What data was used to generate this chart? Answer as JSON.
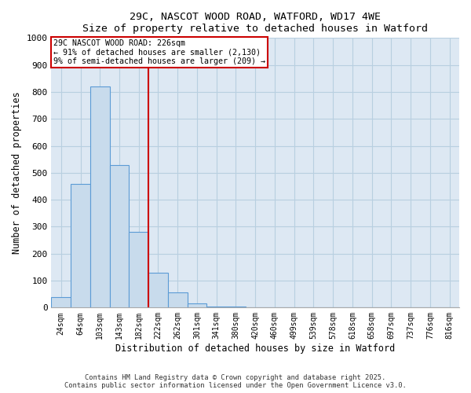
{
  "title_line1": "29C, NASCOT WOOD ROAD, WATFORD, WD17 4WE",
  "title_line2": "Size of property relative to detached houses in Watford",
  "xlabel": "Distribution of detached houses by size in Watford",
  "ylabel": "Number of detached properties",
  "background_color": "#dde8f3",
  "bar_color": "#c8dbec",
  "bar_edge_color": "#5b9bd5",
  "grid_color": "#b8cfe0",
  "categories": [
    "24sqm",
    "64sqm",
    "103sqm",
    "143sqm",
    "182sqm",
    "222sqm",
    "262sqm",
    "301sqm",
    "341sqm",
    "380sqm",
    "420sqm",
    "460sqm",
    "499sqm",
    "539sqm",
    "578sqm",
    "618sqm",
    "658sqm",
    "697sqm",
    "737sqm",
    "776sqm",
    "816sqm"
  ],
  "values": [
    40,
    460,
    820,
    530,
    280,
    130,
    55,
    15,
    5,
    5,
    0,
    0,
    0,
    0,
    0,
    0,
    0,
    0,
    0,
    0,
    0
  ],
  "vline_x": 4.5,
  "property_label": "29C NASCOT WOOD ROAD: 226sqm",
  "annotation_line1": "← 91% of detached houses are smaller (2,130)",
  "annotation_line2": "9% of semi-detached houses are larger (209) →",
  "vline_color": "#cc0000",
  "annotation_box_color": "#cc0000",
  "ylim": [
    0,
    1000
  ],
  "yticks": [
    0,
    100,
    200,
    300,
    400,
    500,
    600,
    700,
    800,
    900,
    1000
  ],
  "footer_line1": "Contains HM Land Registry data © Crown copyright and database right 2025.",
  "footer_line2": "Contains public sector information licensed under the Open Government Licence v3.0."
}
